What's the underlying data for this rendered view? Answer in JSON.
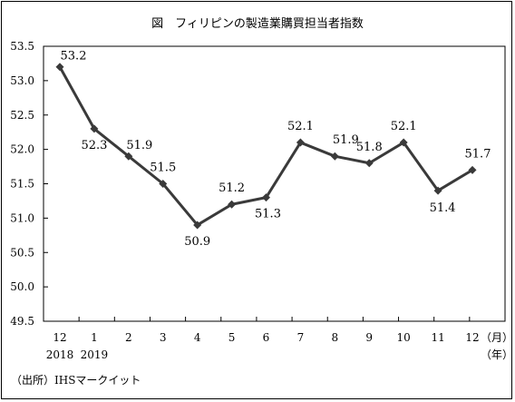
{
  "chart_data": {
    "type": "line",
    "title": "図　フィリピンの製造業購買担当者指数",
    "x_labels": [
      "12",
      "1",
      "2",
      "3",
      "4",
      "5",
      "6",
      "7",
      "8",
      "9",
      "10",
      "11",
      "12"
    ],
    "x_year_labels": [
      "2018",
      "2019"
    ],
    "x_unit_month": "（月）",
    "x_unit_year": "（年）",
    "values": [
      53.2,
      52.3,
      51.9,
      51.5,
      50.9,
      51.2,
      51.3,
      52.1,
      51.9,
      51.8,
      52.1,
      51.4,
      51.7
    ],
    "data_labels": [
      "53.2",
      "52.3",
      "51.9",
      "51.5",
      "50.9",
      "51.2",
      "51.3",
      "52.1",
      "51.9",
      "51.8",
      "52.1",
      "51.4",
      "51.7"
    ],
    "y_ticks": [
      "49.5",
      "50.0",
      "50.5",
      "51.0",
      "51.5",
      "52.0",
      "52.5",
      "53.0",
      "53.5"
    ],
    "ylim": [
      49.5,
      53.5
    ],
    "grid": false,
    "series_color": "#3a3a3a"
  },
  "source": "（出所）IHSマークイット"
}
